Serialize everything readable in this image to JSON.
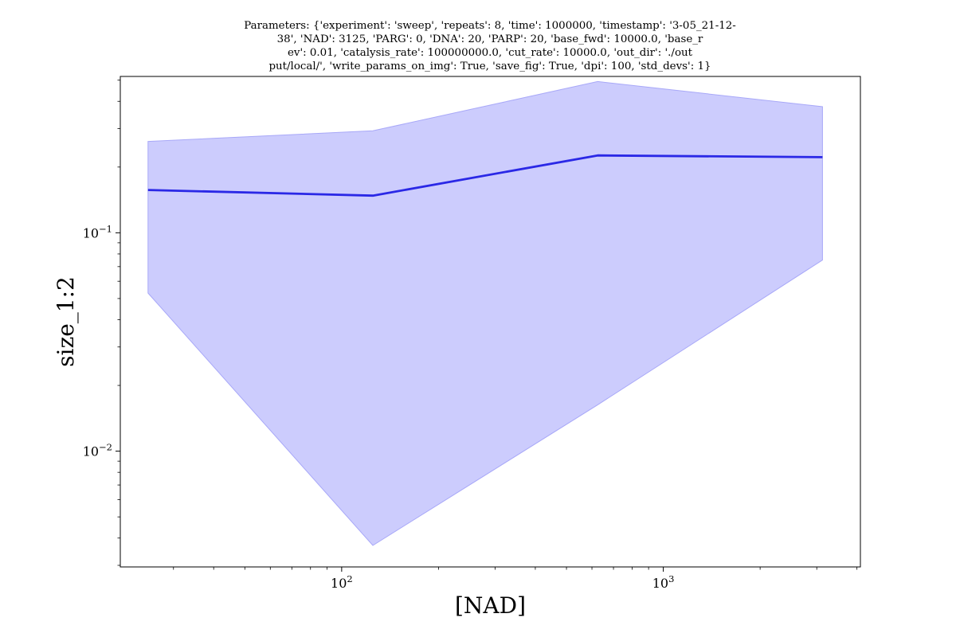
{
  "chart_data": {
    "type": "line",
    "title_lines": [
      "Parameters: {'experiment': 'sweep', 'repeats': 8, 'time': 1000000, 'timestamp': '3-05_21-12-",
      "38', 'NAD': 3125, 'PARG': 0, 'DNA': 20, 'PARP': 20, 'base_fwd': 10000.0, 'base_r",
      "ev': 0.01, 'catalysis_rate': 100000000.0, 'cut_rate': 10000.0, 'out_dir': './out",
      "put/local/', 'write_params_on_img': True, 'save_fig': True, 'dpi': 100, 'std_devs': 1}"
    ],
    "xlabel": "[NAD]",
    "ylabel": "size_1:2",
    "x_scale": "log",
    "y_scale": "log",
    "xlim": [
      20.5,
      4100
    ],
    "ylim": [
      0.00295,
      0.52
    ],
    "x_ticks": [
      {
        "base": "10",
        "exp": "2",
        "value": 100
      },
      {
        "base": "10",
        "exp": "3",
        "value": 1000
      }
    ],
    "y_ticks": [
      {
        "base": "10",
        "exp": "−1",
        "value": 0.1
      },
      {
        "base": "10",
        "exp": "−2",
        "value": 0.01
      }
    ],
    "grid": false,
    "series": [
      {
        "x": [
          25,
          125,
          625,
          3125
        ],
        "y": [
          0.157,
          0.148,
          0.226,
          0.222
        ],
        "lower": [
          0.053,
          0.0037,
          0.0163,
          0.075
        ],
        "upper": [
          0.262,
          0.293,
          0.493,
          0.378
        ],
        "line_color": "#2a28e6",
        "band_color": "#ccccfd",
        "band_edge_color": "#a8a8f8"
      }
    ]
  }
}
